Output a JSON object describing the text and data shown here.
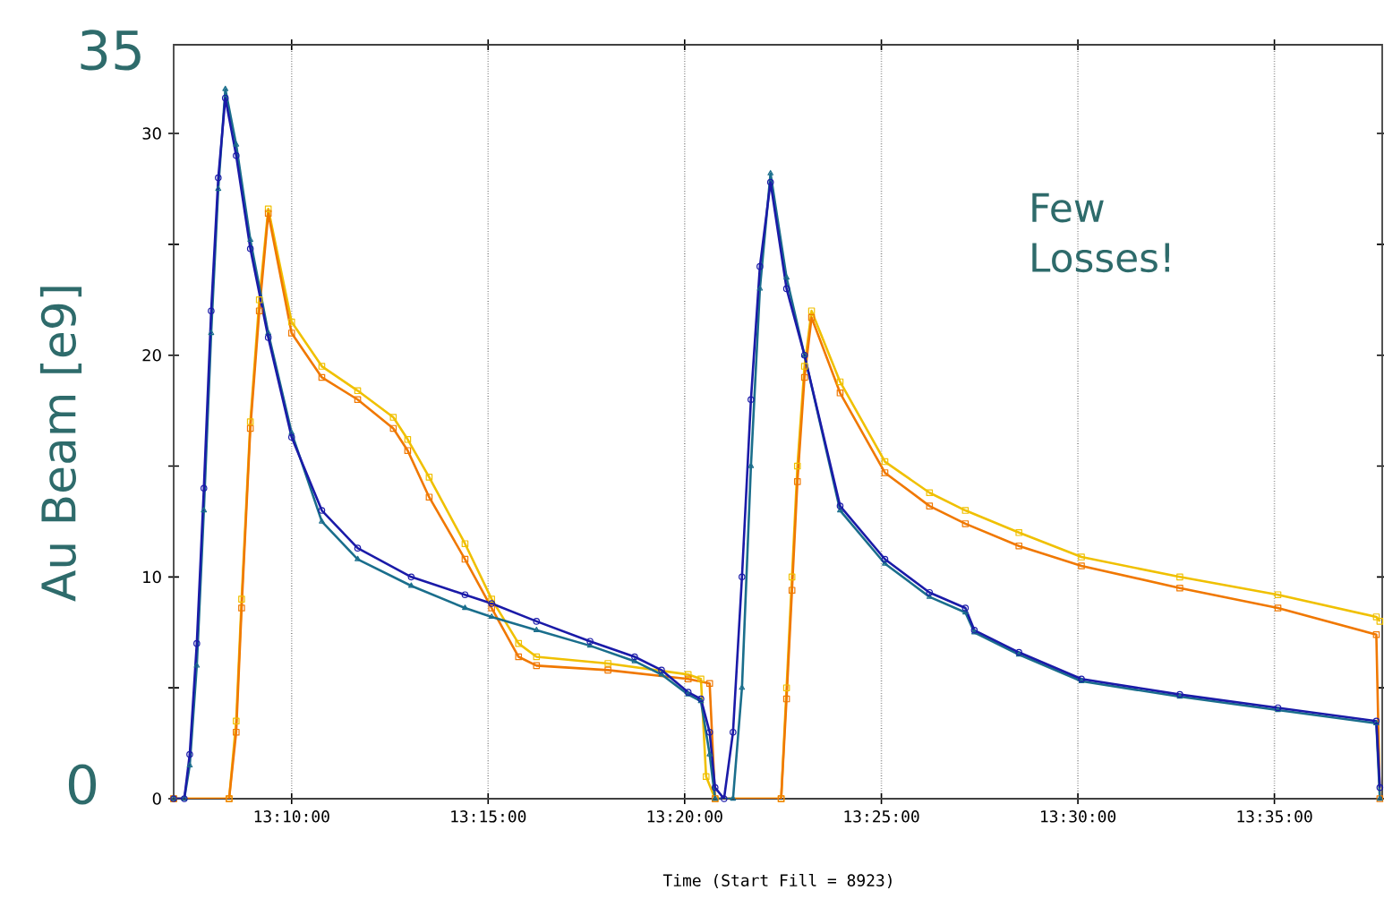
{
  "chart_data": {
    "type": "line",
    "xlabel": "Time (Start Fill = 8923)",
    "ylabel": "Au Beam [e9]",
    "annotations": [
      "35",
      "0",
      "Few Losses!"
    ],
    "xlim": [
      13.1167,
      13.629
    ],
    "ylim": [
      0,
      34
    ],
    "xticks": [
      {
        "value": 13.1667,
        "label": "13:10:00"
      },
      {
        "value": 13.25,
        "label": "13:15:00"
      },
      {
        "value": 13.3333,
        "label": "13:20:00"
      },
      {
        "value": 13.4167,
        "label": "13:25:00"
      },
      {
        "value": 13.5,
        "label": "13:30:00"
      },
      {
        "value": 13.5833,
        "label": "13:35:00"
      }
    ],
    "yticks": [
      0,
      {
        "value": 5,
        "label": null
      },
      10,
      {
        "value": 15,
        "label": null
      },
      20,
      {
        "value": 25,
        "label": null
      },
      30
    ],
    "grid": "x",
    "line_style": "solid",
    "series": [
      {
        "color": "#f0c000",
        "marker": "square",
        "x": [
          13.1167,
          13.1402,
          13.1432,
          13.1455,
          13.1492,
          13.153,
          13.1568,
          13.1667,
          13.1795,
          13.1947,
          13.2098,
          13.2159,
          13.225,
          13.2402,
          13.2515,
          13.2629,
          13.2705,
          13.3008,
          13.3348,
          13.3402,
          13.3424,
          13.3462,
          13.3742,
          13.3765,
          13.3788,
          13.3811,
          13.3841,
          13.3871,
          13.3992,
          13.4182,
          13.4371,
          13.4523,
          13.475,
          13.5015,
          13.5432,
          13.5848,
          13.6265,
          13.628
        ],
        "values": [
          0,
          0,
          3.5,
          9,
          17,
          22.5,
          26.6,
          21.5,
          19.5,
          18.4,
          17.2,
          16.2,
          14.5,
          11.5,
          9,
          7,
          6.4,
          6.1,
          5.6,
          5.4,
          1,
          0,
          0,
          5,
          10,
          15,
          19.5,
          22,
          18.8,
          15.2,
          13.8,
          13,
          12,
          10.9,
          10,
          9.2,
          8.2,
          8
        ]
      },
      {
        "color": "#f07800",
        "marker": "square",
        "x": [
          13.1167,
          13.1402,
          13.1432,
          13.1455,
          13.1492,
          13.153,
          13.1568,
          13.1667,
          13.1795,
          13.1947,
          13.2098,
          13.2159,
          13.225,
          13.2402,
          13.2515,
          13.2629,
          13.2705,
          13.3008,
          13.3348,
          13.3439,
          13.3462,
          13.3742,
          13.3765,
          13.3788,
          13.3811,
          13.3841,
          13.3871,
          13.3992,
          13.4182,
          13.4371,
          13.4523,
          13.475,
          13.5015,
          13.5432,
          13.5848,
          13.6265,
          13.628
        ],
        "values": [
          0,
          0,
          3,
          8.6,
          16.7,
          22,
          26.4,
          21,
          19,
          18,
          16.7,
          15.7,
          13.6,
          10.8,
          8.6,
          6.4,
          6,
          5.8,
          5.4,
          5.2,
          0,
          0,
          4.5,
          9.4,
          14.3,
          19,
          21.7,
          18.3,
          14.7,
          13.2,
          12.4,
          11.4,
          10.5,
          9.5,
          8.6,
          7.4,
          0
        ]
      },
      {
        "color": "#1a6e8c",
        "marker": "triangle",
        "x": [
          13.1167,
          13.1212,
          13.1235,
          13.1265,
          13.1295,
          13.1326,
          13.1356,
          13.1386,
          13.1432,
          13.1492,
          13.1568,
          13.1667,
          13.1795,
          13.1947,
          13.2174,
          13.2402,
          13.2515,
          13.2705,
          13.2932,
          13.3121,
          13.3235,
          13.3348,
          13.3402,
          13.3439,
          13.3462,
          13.3538,
          13.3576,
          13.3614,
          13.3652,
          13.3697,
          13.3765,
          13.3841,
          13.3992,
          13.4182,
          13.4371,
          13.4523,
          13.4561,
          13.475,
          13.5015,
          13.5432,
          13.5848,
          13.6265,
          13.628
        ],
        "values": [
          0,
          0,
          1.5,
          6,
          13,
          21,
          27.5,
          32,
          29.5,
          25.2,
          21,
          16.5,
          12.5,
          10.8,
          9.6,
          8.6,
          8.2,
          7.6,
          6.9,
          6.2,
          5.6,
          4.7,
          4.4,
          2,
          0,
          0,
          5,
          15,
          23,
          28.2,
          23.5,
          20,
          13,
          10.6,
          9.1,
          8.4,
          7.5,
          6.5,
          5.3,
          4.6,
          4,
          3.4,
          0
        ]
      },
      {
        "color": "#1a1aa8",
        "marker": "circle",
        "x": [
          13.1167,
          13.1212,
          13.1235,
          13.1265,
          13.1295,
          13.1326,
          13.1356,
          13.1386,
          13.1432,
          13.1492,
          13.1568,
          13.1667,
          13.1795,
          13.1947,
          13.2174,
          13.2402,
          13.2515,
          13.2705,
          13.2932,
          13.3121,
          13.3235,
          13.3348,
          13.3402,
          13.3439,
          13.3462,
          13.35,
          13.3538,
          13.3576,
          13.3614,
          13.3652,
          13.3697,
          13.3765,
          13.3841,
          13.3992,
          13.4182,
          13.4371,
          13.4523,
          13.4561,
          13.475,
          13.5015,
          13.5432,
          13.5848,
          13.6265,
          13.628
        ],
        "values": [
          0,
          0,
          2,
          7,
          14,
          22,
          28,
          31.6,
          29,
          24.8,
          20.8,
          16.3,
          13,
          11.3,
          10,
          9.2,
          8.8,
          8,
          7.1,
          6.4,
          5.8,
          4.8,
          4.5,
          3,
          0.5,
          0,
          3,
          10,
          18,
          24,
          27.8,
          23,
          20,
          13.2,
          10.8,
          9.3,
          8.6,
          7.6,
          6.6,
          5.4,
          4.7,
          4.1,
          3.5,
          0.5
        ]
      }
    ]
  }
}
